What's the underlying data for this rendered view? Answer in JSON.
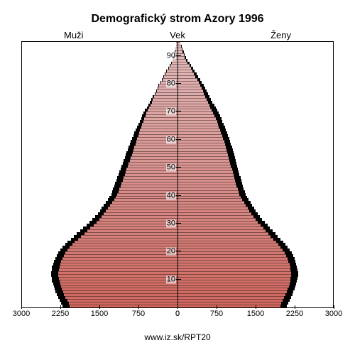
{
  "title": "Demografický strom Azory 1996",
  "labels": {
    "men": "Muži",
    "age": "Vek",
    "women": "Ženy"
  },
  "footer": "www.iz.sk/RPT20",
  "chart": {
    "type": "population-pyramid",
    "x_max": 3000,
    "x_ticks_left": [
      3000,
      2250,
      1500,
      750,
      0
    ],
    "x_ticks_right": [
      0,
      750,
      1500,
      2250,
      3000
    ],
    "y_ticks": [
      10,
      20,
      30,
      40,
      50,
      60,
      70,
      80,
      90
    ],
    "age_max": 95,
    "background_color": "#ffffff",
    "bar_border_color": "#000000",
    "tick_fontsize": 11,
    "color_top": "#e2bcbc",
    "color_bottom": "#cf675f",
    "men_fg": [
      2080,
      2100,
      2130,
      2160,
      2190,
      2210,
      2230,
      2250,
      2260,
      2280,
      2290,
      2300,
      2300,
      2290,
      2280,
      2260,
      2240,
      2220,
      2190,
      2160,
      2120,
      2080,
      2030,
      1980,
      1920,
      1860,
      1800,
      1740,
      1680,
      1620,
      1560,
      1510,
      1460,
      1420,
      1380,
      1340,
      1300,
      1260,
      1220,
      1190,
      1160,
      1140,
      1120,
      1100,
      1080,
      1060,
      1040,
      1020,
      1000,
      980,
      960,
      940,
      920,
      900,
      880,
      860,
      845,
      830,
      815,
      800,
      780,
      760,
      740,
      720,
      700,
      680,
      660,
      640,
      620,
      600,
      575,
      550,
      525,
      500,
      475,
      450,
      425,
      400,
      375,
      350,
      320,
      290,
      260,
      230,
      200,
      170,
      140,
      110,
      90,
      75,
      60,
      48,
      38,
      30,
      22
    ],
    "men_bg": [
      2220,
      2240,
      2270,
      2300,
      2330,
      2350,
      2370,
      2390,
      2400,
      2420,
      2430,
      2440,
      2440,
      2430,
      2420,
      2400,
      2380,
      2360,
      2330,
      2300,
      2260,
      2220,
      2170,
      2120,
      2060,
      2000,
      1940,
      1880,
      1820,
      1760,
      1700,
      1640,
      1590,
      1540,
      1500,
      1460,
      1420,
      1380,
      1340,
      1310,
      1280,
      1260,
      1240,
      1220,
      1200,
      1180,
      1160,
      1140,
      1120,
      1100,
      1080,
      1060,
      1040,
      1020,
      1000,
      980,
      960,
      940,
      920,
      900,
      880,
      855,
      830,
      805,
      780,
      755,
      730,
      705,
      680,
      655,
      625,
      595,
      565,
      535,
      505,
      475,
      445,
      415,
      390,
      365,
      335,
      305,
      275,
      245,
      215,
      185,
      155,
      125,
      100,
      82,
      66,
      52,
      41,
      32,
      24
    ],
    "women_fg": [
      1980,
      2000,
      2020,
      2050,
      2080,
      2100,
      2120,
      2140,
      2155,
      2170,
      2180,
      2190,
      2190,
      2180,
      2170,
      2155,
      2135,
      2115,
      2090,
      2060,
      2025,
      1985,
      1940,
      1895,
      1845,
      1795,
      1745,
      1695,
      1645,
      1595,
      1545,
      1500,
      1455,
      1415,
      1380,
      1345,
      1310,
      1275,
      1245,
      1215,
      1190,
      1170,
      1150,
      1130,
      1115,
      1100,
      1085,
      1070,
      1055,
      1040,
      1025,
      1010,
      995,
      980,
      965,
      950,
      935,
      920,
      905,
      890,
      870,
      850,
      830,
      810,
      790,
      770,
      750,
      725,
      700,
      675,
      650,
      625,
      600,
      575,
      550,
      525,
      500,
      475,
      450,
      425,
      395,
      365,
      335,
      305,
      275,
      245,
      215,
      185,
      155,
      130,
      108,
      88,
      70,
      54,
      40
    ],
    "women_bg": [
      2110,
      2130,
      2155,
      2185,
      2215,
      2235,
      2255,
      2275,
      2290,
      2305,
      2315,
      2325,
      2325,
      2315,
      2305,
      2290,
      2270,
      2250,
      2225,
      2195,
      2160,
      2120,
      2075,
      2030,
      1980,
      1930,
      1880,
      1830,
      1780,
      1730,
      1680,
      1630,
      1585,
      1540,
      1505,
      1470,
      1435,
      1400,
      1365,
      1335,
      1310,
      1290,
      1270,
      1250,
      1235,
      1220,
      1205,
      1190,
      1175,
      1160,
      1145,
      1130,
      1115,
      1100,
      1085,
      1070,
      1055,
      1040,
      1025,
      1010,
      990,
      970,
      950,
      925,
      905,
      885,
      860,
      835,
      810,
      785,
      755,
      725,
      695,
      665,
      635,
      605,
      575,
      545,
      520,
      495,
      460,
      425,
      390,
      355,
      320,
      285,
      250,
      215,
      185,
      155,
      128,
      104,
      82,
      63,
      47
    ]
  }
}
